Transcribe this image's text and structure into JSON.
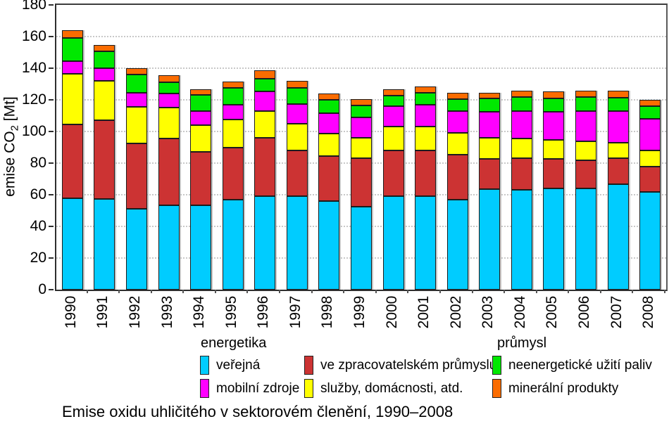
{
  "figure": {
    "caption": "Emise oxidu uhličitého v sektorovém členění, 1990–2008",
    "y_axis_title_prefix": "emise CO",
    "y_axis_title_sub": "2",
    "y_axis_title_suffix": " [Mt]"
  },
  "legend": {
    "groups": {
      "energetika": "energetika",
      "prumysl": "průmysl"
    },
    "items": [
      {
        "label": "veřejná",
        "color": "#00CCFF"
      },
      {
        "label": "ve zpracovatelském průmyslu",
        "color": "#CC3333"
      },
      {
        "label": "neenergetické užití paliv",
        "color": "#00E800"
      },
      {
        "label": "mobilní zdroje",
        "color": "#FF00FF"
      },
      {
        "label": "služby, domácnosti, atd.",
        "color": "#FFFF00"
      },
      {
        "label": "minerální produkty",
        "color": "#FB6C00"
      }
    ]
  },
  "chart_data": {
    "type": "bar",
    "stacked": true,
    "title": "Emise oxidu uhličitého v sektorovém členění, 1990–2008",
    "ylabel": "emise CO2 [Mt]",
    "xlabel": "",
    "ylim": [
      0,
      180
    ],
    "ytick_step": 20,
    "grid": "horizontal dotted",
    "legend_position": "below",
    "categories": [
      "1990",
      "1991",
      "1992",
      "1993",
      "1994",
      "1995",
      "1996",
      "1997",
      "1998",
      "1999",
      "2000",
      "2001",
      "2002",
      "2003",
      "2004",
      "2005",
      "2006",
      "2007",
      "2008"
    ],
    "series": [
      {
        "name": "veřejná",
        "group": "energetika",
        "color": "#00CCFF",
        "values": [
          58,
          57.5,
          51,
          53.5,
          53.5,
          57,
          59,
          59,
          56,
          52.5,
          59,
          59,
          57,
          63.5,
          63,
          64,
          64,
          66.5,
          62
        ]
      },
      {
        "name": "ve zpracovatelském průmyslu",
        "group": "energetika",
        "color": "#CC3333",
        "values": [
          46.5,
          49.5,
          41.5,
          42,
          33.5,
          33,
          37,
          29,
          28.5,
          30.5,
          29,
          29,
          28.5,
          19,
          20,
          18.5,
          18,
          16.5,
          16
        ]
      },
      {
        "name": "služby, domácnosti, atd.",
        "group": "energetika",
        "color": "#FFFF00",
        "values": [
          32,
          25,
          23,
          19.5,
          17,
          17.5,
          17,
          17,
          14,
          13,
          15,
          15,
          13.5,
          13.5,
          12.5,
          12,
          12,
          10,
          10
        ]
      },
      {
        "name": "mobilní zdroje",
        "group": "energetika",
        "color": "#FF00FF",
        "values": [
          8,
          8,
          9,
          9,
          9,
          9.5,
          12.5,
          12.5,
          13,
          13,
          13,
          14,
          14,
          16.5,
          17.5,
          18,
          19,
          20,
          20
        ]
      },
      {
        "name": "neenergetické užití paliv",
        "group": "průmysl",
        "color": "#00E800",
        "values": [
          14.5,
          10.5,
          11.5,
          7,
          10,
          10.5,
          8,
          10,
          8.5,
          7.5,
          6.5,
          7.5,
          7.5,
          8.5,
          9,
          8.5,
          9,
          8.5,
          8
        ]
      },
      {
        "name": "minerální produkty",
        "group": "průmysl",
        "color": "#FB6C00",
        "values": [
          5,
          4,
          4,
          4.5,
          3.5,
          4,
          5,
          4.5,
          4,
          4,
          4,
          4,
          4,
          3.5,
          4,
          4.5,
          4,
          4.5,
          4
        ]
      }
    ],
    "totals": [
      164,
      154.5,
      140,
      135.5,
      126.5,
      131.5,
      138.5,
      132,
      124,
      120.5,
      126.5,
      128.5,
      124.5,
      124.5,
      126,
      125.5,
      126,
      126,
      120
    ]
  }
}
